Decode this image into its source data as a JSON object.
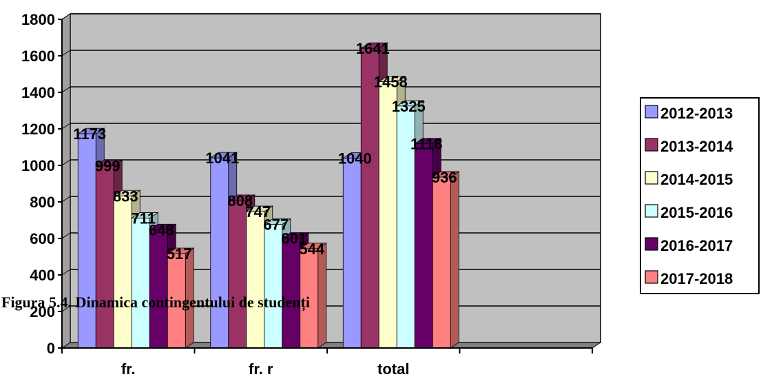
{
  "chart_data": {
    "type": "bar",
    "categories": [
      "fr.",
      "fr. r",
      "total"
    ],
    "series": [
      {
        "name": "2012-2013",
        "values": [
          1173,
          1041,
          1040
        ],
        "color": "#9999ff"
      },
      {
        "name": "2013-2014",
        "values": [
          999,
          808,
          1641
        ],
        "color": "#993366"
      },
      {
        "name": "2014-2015",
        "values": [
          833,
          747,
          1458
        ],
        "color": "#ffffcc"
      },
      {
        "name": "2015-2016",
        "values": [
          711,
          677,
          1325
        ],
        "color": "#ccffff"
      },
      {
        "name": "2016-2017",
        "values": [
          648,
          601,
          1118
        ],
        "color": "#660066"
      },
      {
        "name": "2017-2018",
        "values": [
          517,
          544,
          936
        ],
        "color": "#ff8080"
      }
    ],
    "data_labels": [
      [
        "1173",
        "1041",
        "1040"
      ],
      [
        "999",
        "808",
        "1641"
      ],
      [
        "833",
        "747",
        "1458"
      ],
      [
        "711",
        "677",
        "1325"
      ],
      [
        "648",
        "601",
        "1118"
      ],
      [
        "517",
        "544",
        "936"
      ]
    ],
    "yticks": [
      "0",
      "200",
      "400",
      "600",
      "800",
      "1000",
      "1200",
      "1400",
      "1600",
      "1800"
    ],
    "ylim": [
      0,
      1800
    ],
    "grid": true,
    "plot_background": "#c0c0c0",
    "legend_position": "right",
    "title": "",
    "xlabel": "",
    "ylabel": ""
  },
  "caption": "Figura 5.4. Dinamica contingentului de studenți"
}
